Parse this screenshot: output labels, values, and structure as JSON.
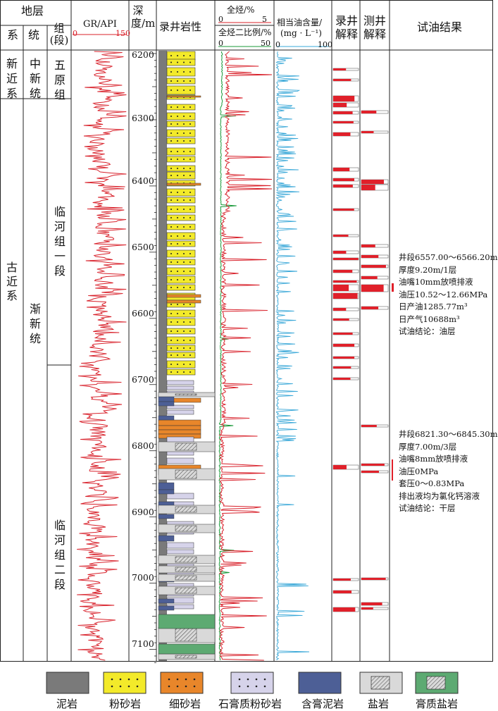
{
  "header": {
    "strata": "地层",
    "system": "系",
    "series": "统",
    "formation": "组(段)",
    "gr_label": "GR/API",
    "gr_min": "0",
    "gr_max": "150",
    "depth_label": "深度/m",
    "lithology_label": "录井岩性",
    "tg_label": "全烃/%",
    "tg_min": "0",
    "tg_max": "5",
    "tgr_label": "全烃二比例/%",
    "tgr_min": "0",
    "tgr_max": "50",
    "oil_label": "相当油含量/",
    "oil_unit": "(mg · L⁻¹)",
    "oil_min": "0",
    "oil_max": "100",
    "mudlog_interp": "录井解释",
    "welllog_interp": "测井解释",
    "test_result": "试油结果"
  },
  "stratigraphy": {
    "systems": [
      "新近系",
      "古近系"
    ],
    "series": [
      "中新统",
      "渐新统"
    ],
    "formations": [
      "五原组",
      "临河组一段",
      "临河组二段"
    ]
  },
  "depth_ticks": [
    "6200",
    "6300",
    "6400",
    "6500",
    "6600",
    "6700",
    "6800",
    "6900",
    "7000",
    "7100"
  ],
  "test_results": [
    {
      "lines": [
        "井段6557.00～6566.20m",
        "厚度9.20m/1层",
        "油嘴10mm放喷排液",
        "油压10.52～12.66MPa",
        "日产油1285.77m³",
        "日产气10688m³",
        "试油结论：油层"
      ]
    },
    {
      "lines": [
        "井段6821.30～6845.30m",
        "厚度7.00m/3层",
        "油嘴8mm放喷排液",
        "油压0MPa",
        "套压0～0.83MPa",
        "排出液均为氯化钙溶液",
        "试油结论：干层"
      ]
    }
  ],
  "legend": [
    "泥岩",
    "粉砂岩",
    "细砂岩",
    "石膏质粉砂岩",
    "含膏泥岩",
    "盐岩",
    "膏质盐岩"
  ],
  "colors": {
    "mudstone": "#7a7a7a",
    "siltstone": "#f3ea2a",
    "fine_sandstone": "#e8862a",
    "gypsum_siltstone": "#d6d3ea",
    "gypsum_mudstone": "#4d5f96",
    "salt": "#d9d9d9",
    "gypsum_salt": "#5daa72",
    "gr_curve": "#d8202a",
    "tg_curve": "#d8202a",
    "tgr_curve": "#1a9a3a",
    "oil_curve": "#3aa8d8",
    "interp_red": "#e0202a"
  }
}
